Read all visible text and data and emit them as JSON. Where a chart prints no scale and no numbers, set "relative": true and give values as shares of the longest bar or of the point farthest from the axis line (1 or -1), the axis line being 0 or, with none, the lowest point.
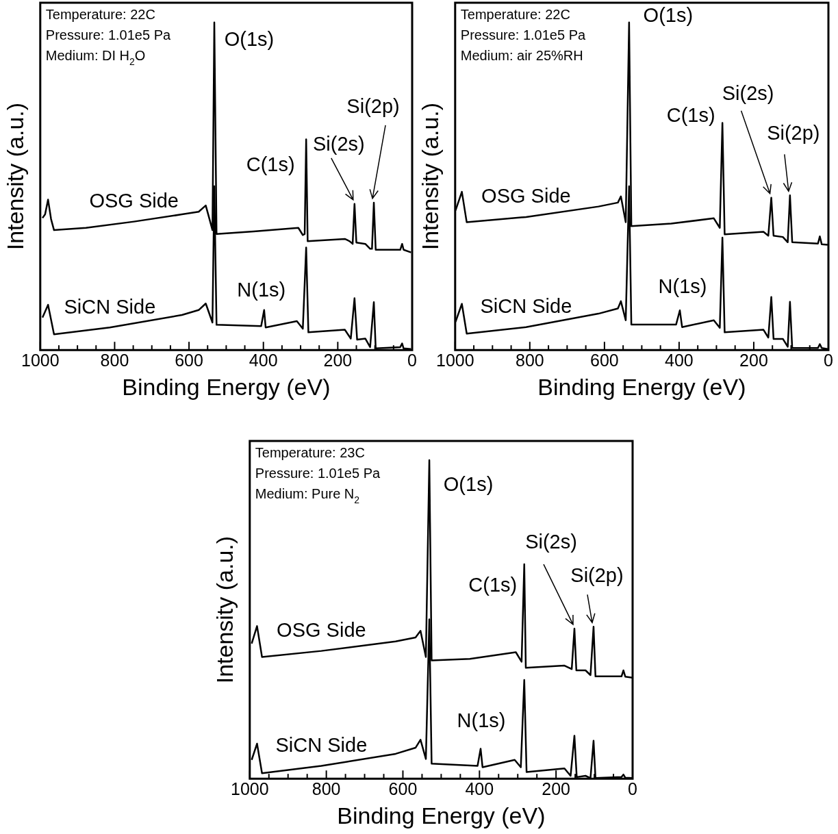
{
  "chart_data": [
    {
      "type": "line",
      "xlabel": "Binding Energy (eV)",
      "ylabel": "Intensity (a.u.)",
      "relative": true,
      "grid": false,
      "legend": false,
      "marker": "none",
      "tick_labels": "x",
      "xlim": [
        1000,
        0
      ],
      "xticks": [
        1000,
        {
          "value": 950,
          "label": null
        },
        {
          "value": 900,
          "label": null
        },
        {
          "value": 850,
          "label": null
        },
        800,
        {
          "value": 750,
          "label": null
        },
        {
          "value": 700,
          "label": null
        },
        {
          "value": 650,
          "label": null
        },
        600,
        {
          "value": 550,
          "label": null
        },
        {
          "value": 500,
          "label": null
        },
        {
          "value": 450,
          "label": null
        },
        400,
        {
          "value": 350,
          "label": null
        },
        {
          "value": 300,
          "label": null
        },
        {
          "value": 250,
          "label": null
        },
        200,
        {
          "value": 150,
          "label": null
        },
        {
          "value": 100,
          "label": null
        },
        {
          "value": 50,
          "label": null
        },
        0
      ],
      "series": [
        {
          "name": "OSG Side",
          "color": "#000000",
          "x": [
            994,
            987,
            979,
            971,
            963,
            877,
            748,
            619,
            574,
            555,
            545,
            537,
            532,
            526,
            426,
            306,
            294,
            289,
            285,
            281,
            181,
            168,
            160,
            155,
            150,
            126,
            113,
            108,
            103,
            98,
            32,
            27,
            23,
            3
          ],
          "values": [
            0.403,
            0.414,
            0.459,
            0.4,
            0.366,
            0.373,
            0.392,
            0.414,
            0.422,
            0.441,
            0.4,
            0.366,
            1.0,
            0.354,
            0.362,
            0.373,
            0.351,
            0.354,
            0.643,
            0.332,
            0.339,
            0.332,
            0.324,
            0.446,
            0.328,
            0.324,
            0.309,
            0.309,
            0.45,
            0.306,
            0.306,
            0.324,
            0.306,
            0.298
          ]
        },
        {
          "name": "SiCN Side",
          "color": "#000000",
          "x": [
            994,
            979,
            963,
            813,
            619,
            574,
            555,
            537,
            532,
            526,
            406,
            398,
            394,
            310,
            294,
            285,
            279,
            181,
            165,
            155,
            148,
            126,
            113,
            103,
            98,
            32,
            27,
            23,
            3
          ],
          "values": [
            0.099,
            0.138,
            0.048,
            0.069,
            0.107,
            0.122,
            0.142,
            0.084,
            0.5,
            0.077,
            0.073,
            0.122,
            0.069,
            0.088,
            0.065,
            0.313,
            0.054,
            0.062,
            0.035,
            0.158,
            0.032,
            0.035,
            0.009,
            0.146,
            0.005,
            0.009,
            0.02,
            0.005,
            0.003
          ]
        }
      ],
      "annotations": [
        "Temperature: 22C",
        "Pressure: 1.01e5 Pa",
        "Medium: DI H$_{2}$O",
        {
          "text": "O(1s)",
          "x": 532,
          "y": 1.0
        },
        {
          "text": "C(1s)",
          "x": 285,
          "y": 0.643
        },
        {
          "text": "N(1s)",
          "x": 398,
          "y": 0.122
        },
        {
          "text": "Si(2s)",
          "x": 155,
          "y": 0.446
        },
        {
          "text": "Si(2p)",
          "x": 103,
          "y": 0.45
        }
      ]
    },
    {
      "type": "line",
      "xlabel": "Binding Energy (eV)",
      "ylabel": "Intensity (a.u.)",
      "relative": true,
      "grid": false,
      "legend": false,
      "marker": "none",
      "tick_labels": "x",
      "xlim": [
        1000,
        0
      ],
      "xticks": [
        1000,
        {
          "value": 950,
          "label": null
        },
        {
          "value": 900,
          "label": null
        },
        {
          "value": 850,
          "label": null
        },
        800,
        {
          "value": 750,
          "label": null
        },
        {
          "value": 700,
          "label": null
        },
        {
          "value": 650,
          "label": null
        },
        600,
        {
          "value": 550,
          "label": null
        },
        {
          "value": 500,
          "label": null
        },
        {
          "value": 450,
          "label": null
        },
        400,
        {
          "value": 350,
          "label": null
        },
        {
          "value": 300,
          "label": null
        },
        {
          "value": 250,
          "label": null
        },
        200,
        {
          "value": 150,
          "label": null
        },
        {
          "value": 100,
          "label": null
        },
        {
          "value": 50,
          "label": null
        },
        0
      ],
      "series": [
        {
          "name": "OSG Side",
          "color": "#000000",
          "x": [
            999,
            982,
            969,
            810,
            616,
            564,
            556,
            543,
            534,
            528,
            421,
            307,
            291,
            284,
            278,
            174,
            161,
            153,
            147,
            122,
            109,
            103,
            97,
            28,
            23,
            18,
            2
          ],
          "values": [
            0.426,
            0.483,
            0.39,
            0.406,
            0.438,
            0.45,
            0.469,
            0.39,
            1.0,
            0.378,
            0.386,
            0.402,
            0.373,
            0.693,
            0.353,
            0.361,
            0.349,
            0.465,
            0.349,
            0.345,
            0.329,
            0.472,
            0.329,
            0.325,
            0.347,
            0.323,
            0.321
          ]
        },
        {
          "name": "SiCN Side",
          "color": "#000000",
          "x": [
            999,
            982,
            969,
            810,
            616,
            564,
            556,
            543,
            534,
            528,
            408,
            398,
            392,
            307,
            291,
            284,
            278,
            174,
            161,
            153,
            147,
            122,
            109,
            103,
            97,
            28,
            23,
            18,
            2
          ],
          "values": [
            0.086,
            0.141,
            0.05,
            0.07,
            0.111,
            0.127,
            0.149,
            0.091,
            0.5,
            0.078,
            0.078,
            0.121,
            0.07,
            0.091,
            0.068,
            0.343,
            0.054,
            0.062,
            0.038,
            0.162,
            0.034,
            0.034,
            0.01,
            0.147,
            0.006,
            0.006,
            0.018,
            0.006,
            0.003
          ]
        }
      ],
      "annotations": [
        "Temperature: 22C",
        "Pressure: 1.01e5 Pa",
        "Medium: air 25%RH",
        {
          "text": "O(1s)",
          "x": 534,
          "y": 1.0
        },
        {
          "text": "C(1s)",
          "x": 284,
          "y": 0.693
        },
        {
          "text": "N(1s)",
          "x": 398,
          "y": 0.121
        },
        {
          "text": "Si(2s)",
          "x": 153,
          "y": 0.465
        },
        {
          "text": "Si(2p)",
          "x": 103,
          "y": 0.472
        }
      ]
    },
    {
      "type": "line",
      "xlabel": "Binding Energy (eV)",
      "ylabel": "Intensity (a.u.)",
      "relative": true,
      "grid": false,
      "legend": false,
      "marker": "none",
      "tick_labels": "x",
      "xlim": [
        1000,
        0
      ],
      "xticks": [
        1000,
        {
          "value": 950,
          "label": null
        },
        {
          "value": 900,
          "label": null
        },
        {
          "value": 850,
          "label": null
        },
        800,
        {
          "value": 750,
          "label": null
        },
        {
          "value": 700,
          "label": null
        },
        {
          "value": 650,
          "label": null
        },
        600,
        {
          "value": 550,
          "label": null
        },
        {
          "value": 500,
          "label": null
        },
        {
          "value": 450,
          "label": null
        },
        400,
        {
          "value": 350,
          "label": null
        },
        {
          "value": 300,
          "label": null
        },
        {
          "value": 250,
          "label": null
        },
        200,
        {
          "value": 150,
          "label": null
        },
        {
          "value": 100,
          "label": null
        },
        {
          "value": 50,
          "label": null
        },
        0
      ],
      "series": [
        {
          "name": "OSG Side",
          "color": "#000000",
          "x": [
            995,
            981,
            968,
            813,
            619,
            567,
            554,
            540,
            531,
            525,
            425,
            305,
            290,
            283,
            279,
            178,
            159,
            152,
            147,
            123,
            110,
            102,
            97,
            29,
            24,
            19,
            0
          ],
          "values": [
            0.424,
            0.479,
            0.382,
            0.401,
            0.431,
            0.443,
            0.464,
            0.382,
            1.0,
            0.371,
            0.376,
            0.397,
            0.367,
            0.673,
            0.348,
            0.355,
            0.344,
            0.471,
            0.34,
            0.34,
            0.325,
            0.477,
            0.321,
            0.321,
            0.34,
            0.32,
            0.317
          ]
        },
        {
          "name": "SiCN Side",
          "color": "#000000",
          "x": [
            995,
            981,
            968,
            813,
            619,
            567,
            554,
            540,
            531,
            525,
            405,
            397,
            392,
            308,
            292,
            283,
            277,
            178,
            162,
            152,
            146,
            123,
            110,
            102,
            97,
            29,
            24,
            19,
            0
          ],
          "values": [
            0.059,
            0.11,
            0.017,
            0.04,
            0.078,
            0.097,
            0.122,
            0.062,
            0.5,
            0.047,
            0.04,
            0.094,
            0.036,
            0.059,
            0.036,
            0.31,
            0.021,
            0.032,
            0.009,
            0.135,
            0.005,
            0.009,
            0.002,
            0.119,
            0.002,
            0.005,
            0.013,
            0.003,
            0.002
          ]
        }
      ],
      "annotations": [
        "Temperature: 23C",
        "Pressure: 1.01e5 Pa",
        "Medium: Pure N$_{2}$",
        {
          "text": "O(1s)",
          "x": 531,
          "y": 1.0
        },
        {
          "text": "C(1s)",
          "x": 283,
          "y": 0.673
        },
        {
          "text": "N(1s)",
          "x": 397,
          "y": 0.094
        },
        {
          "text": "Si(2s)",
          "x": 152,
          "y": 0.471
        },
        {
          "text": "Si(2p)",
          "x": 102,
          "y": 0.477
        }
      ]
    }
  ]
}
